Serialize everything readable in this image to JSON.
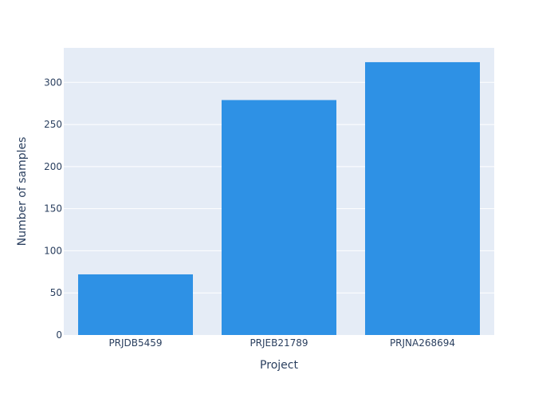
{
  "chart_data": {
    "type": "bar",
    "categories": [
      "PRJDB5459",
      "PRJEB21789",
      "PRJNA268694"
    ],
    "values": [
      72,
      279,
      324
    ],
    "xlabel": "Project",
    "ylabel": "Number of samples",
    "ylim": [
      0,
      341
    ],
    "yticks": [
      0,
      50,
      100,
      150,
      200,
      250,
      300
    ],
    "grid": true,
    "bar_color": "#2e91e5",
    "plot_bg": "#e5ecf6",
    "gridline_color": "#ffffff",
    "text_color": "#2a3f5f"
  }
}
